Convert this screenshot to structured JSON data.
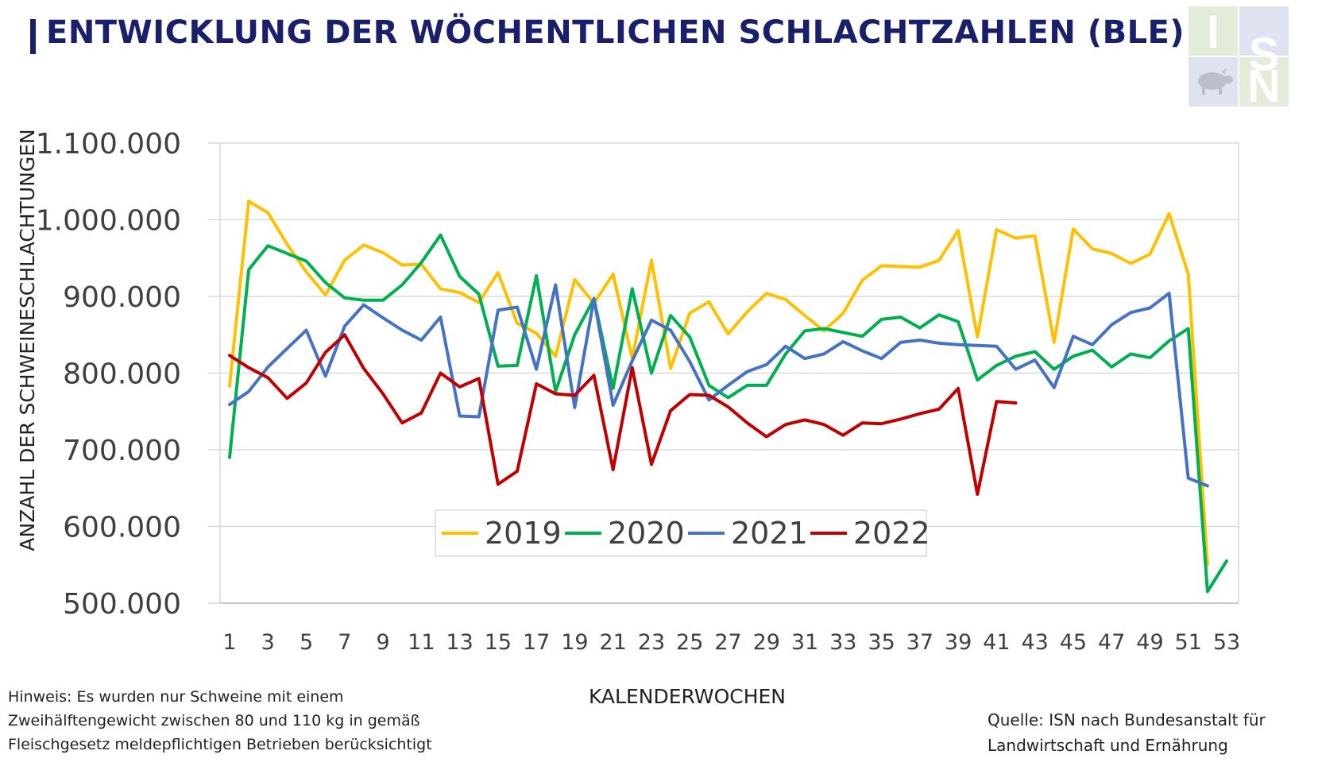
{
  "header": {
    "title": "ENTWICKLUNG DER WÖCHENTLICHEN SCHLACHTZAHLEN (BLE)",
    "logo_letters": [
      "I",
      "S",
      "N"
    ]
  },
  "footer": {
    "note_lines": [
      "Hinweis: Es wurden nur Schweine mit einem",
      "Zweihälftengewicht zwischen 80 und 110 kg  in gemäß",
      "Fleischgesetz meldepflichtigen Betrieben berücksichtigt"
    ],
    "source_lines": [
      "Quelle: ISN nach Bundesanstalt für",
      "Landwirtschaft und Ernährung"
    ]
  },
  "colors": {
    "title": "#1a1f6b",
    "grid": "#d9d9d9",
    "2019": "#ffc000",
    "2020": "#00b050",
    "2021": "#4472c4",
    "2022": "#c00000"
  },
  "chart_data": {
    "type": "line",
    "title": "",
    "xlabel": "KALENDERWOCHEN",
    "ylabel": "ANZAHL DER SCHWEINESCHLACHTUNGEN",
    "ylim": [
      500000,
      1100000
    ],
    "yticks": [
      500000,
      600000,
      700000,
      800000,
      900000,
      1000000,
      1100000
    ],
    "ytick_labels": [
      "500.000",
      "600.000",
      "700.000",
      "800.000",
      "900.000",
      "1.000.000",
      "1.100.000"
    ],
    "xlim": [
      1,
      53
    ],
    "xticks": [
      1,
      3,
      5,
      7,
      9,
      11,
      13,
      15,
      17,
      19,
      21,
      23,
      25,
      27,
      29,
      31,
      33,
      35,
      37,
      39,
      41,
      43,
      45,
      47,
      49,
      51,
      53
    ],
    "xtick_labels": [
      "1",
      "3",
      "5",
      "7",
      "9",
      "11",
      "13",
      "15",
      "17",
      "19",
      "21",
      "23",
      "25",
      "27",
      "29",
      "31",
      "33",
      "35",
      "37",
      "39",
      "41",
      "43",
      "45",
      "47",
      "49",
      "51",
      "53"
    ],
    "grid": "horizontal",
    "legend_position": "bottom-left inside",
    "series": [
      {
        "name": "2019",
        "color": "#ffc000",
        "start_week": 1,
        "values": [
          783000,
          1024000,
          1009000,
          968000,
          932000,
          902000,
          947000,
          967000,
          957000,
          941000,
          942000,
          910000,
          905000,
          892000,
          931000,
          865000,
          852000,
          822000,
          922000,
          891000,
          929000,
          819000,
          947000,
          806000,
          878000,
          893000,
          851000,
          880000,
          904000,
          896000,
          875000,
          855000,
          878000,
          921000,
          940000,
          939000,
          938000,
          947000,
          986000,
          847000,
          987000,
          976000,
          979000,
          840000,
          988000,
          962000,
          956000,
          943000,
          955000,
          1008000,
          929000,
          550000
        ]
      },
      {
        "name": "2020",
        "color": "#00b050",
        "start_week": 1,
        "values": [
          690000,
          935000,
          966000,
          956000,
          946000,
          918000,
          898000,
          895000,
          895000,
          915000,
          944000,
          980000,
          926000,
          903000,
          809000,
          810000,
          927000,
          776000,
          850000,
          897000,
          780000,
          910000,
          800000,
          875000,
          847000,
          784000,
          768000,
          784000,
          784000,
          825000,
          855000,
          858000,
          853000,
          848000,
          870000,
          873000,
          859000,
          876000,
          867000,
          791000,
          810000,
          822000,
          828000,
          805000,
          822000,
          830000,
          808000,
          825000,
          820000,
          842000,
          858000,
          515000,
          555000
        ]
      },
      {
        "name": "2021",
        "color": "#4472c4",
        "start_week": 1,
        "values": [
          759000,
          776000,
          808000,
          832000,
          856000,
          796000,
          861000,
          889000,
          872000,
          856000,
          843000,
          873000,
          744000,
          743000,
          882000,
          886000,
          805000,
          915000,
          755000,
          897000,
          758000,
          816000,
          869000,
          856000,
          815000,
          765000,
          784000,
          802000,
          811000,
          835000,
          819000,
          825000,
          841000,
          829000,
          819000,
          840000,
          843000,
          839000,
          837000,
          836000,
          835000,
          805000,
          817000,
          781000,
          848000,
          837000,
          863000,
          879000,
          885000,
          904000,
          663000,
          653000
        ]
      },
      {
        "name": "2022",
        "color": "#c00000",
        "start_week": 1,
        "values": [
          823000,
          807000,
          794000,
          767000,
          787000,
          827000,
          850000,
          806000,
          773000,
          735000,
          748000,
          800000,
          782000,
          793000,
          655000,
          672000,
          786000,
          773000,
          771000,
          797000,
          674000,
          807000,
          681000,
          751000,
          772000,
          771000,
          756000,
          735000,
          717000,
          733000,
          739000,
          733000,
          719000,
          735000,
          734000,
          740000,
          747000,
          753000,
          780000,
          642000,
          763000,
          761000
        ]
      }
    ]
  }
}
